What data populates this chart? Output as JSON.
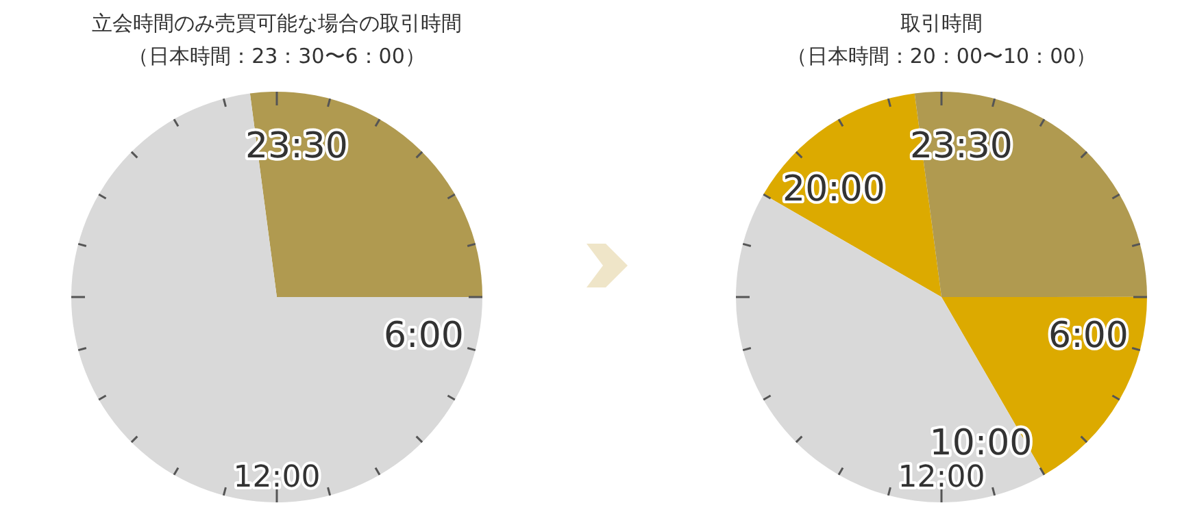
{
  "chart_data": [
    {
      "type": "pie",
      "title": "立会時間のみ売買可能な場合の取引時間",
      "subtitle": "（日本時間：23：30〜6：00）",
      "categories": [
        "23:30",
        "6:00"
      ],
      "values": [
        27.08,
        72.92
      ],
      "colors": [
        "#b09a50",
        "#d9d9d9"
      ],
      "annotations": [
        "12:00"
      ]
    },
    {
      "type": "pie",
      "title": "取引時間",
      "subtitle": "（日本時間：20：00〜10：00）",
      "categories": [
        "20:00",
        "23:30",
        "6:00",
        "10:00"
      ],
      "values": [
        14.58,
        27.08,
        16.67,
        41.67
      ],
      "colors": [
        "#dcaa00",
        "#b09a50",
        "#dcaa00",
        "#d9d9d9"
      ],
      "annotations": [
        "12:00"
      ]
    }
  ]
}
